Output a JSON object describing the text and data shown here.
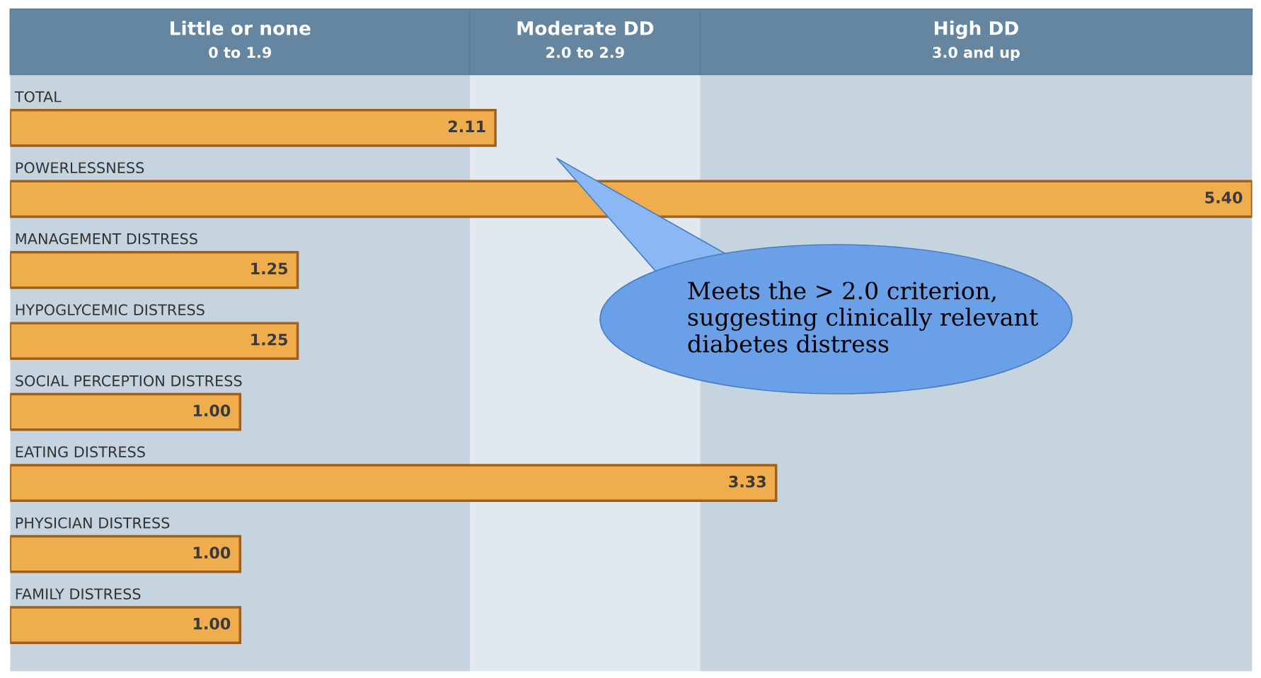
{
  "chart_data": {
    "type": "bar",
    "orientation": "horizontal",
    "categories": [
      "TOTAL",
      "POWERLESSNESS",
      "MANAGEMENT DISTRESS",
      "HYPOGLYCEMIC DISTRESS",
      "SOCIAL PERCEPTION DISTRESS",
      "EATING DISTRESS",
      "PHYSICIAN DISTRESS",
      "FAMILY DISTRESS"
    ],
    "values": [
      2.11,
      5.4,
      1.25,
      1.25,
      1.0,
      3.33,
      1.0,
      1.0
    ],
    "value_labels": [
      "2.11",
      "5.40",
      "1.25",
      "1.25",
      "1.00",
      "3.33",
      "1.00",
      "1.00"
    ],
    "color": "#f0ad4e",
    "xlim": [
      0,
      5.4
    ],
    "bands": [
      {
        "axis": "x",
        "from": 0,
        "to": 2.0,
        "label": "Little or none\n0 to 1.9",
        "color": "#c6d4df"
      },
      {
        "axis": "x",
        "from": 2.0,
        "to": 3.0,
        "label": "Moderate DD\n2.0 to 2.9",
        "color": "#e1e8ef"
      },
      {
        "axis": "x",
        "from": 3.0,
        "to": 5.4,
        "label": "High DD\n3.0 and up",
        "color": "#c6d4df"
      }
    ],
    "annotations": [
      "Meets the > 2.0 criterion,\nsuggesting clinically relevant\ndiabetes distress"
    ]
  }
}
